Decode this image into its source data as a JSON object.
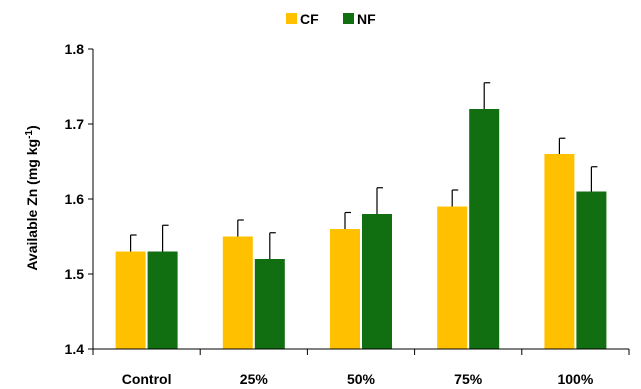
{
  "chart_data": {
    "type": "bar",
    "categories": [
      "Control",
      "25%",
      "50%",
      "75%",
      "100%"
    ],
    "series": [
      {
        "name": "CF",
        "color": "#FFC000",
        "values": [
          1.53,
          1.55,
          1.56,
          1.59,
          1.66
        ],
        "errors": [
          0.022,
          0.022,
          0.022,
          0.022,
          0.021
        ]
      },
      {
        "name": "NF",
        "color": "#116E11",
        "values": [
          1.53,
          1.52,
          1.58,
          1.72,
          1.61
        ],
        "errors": [
          0.035,
          0.035,
          0.035,
          0.035,
          0.033
        ]
      }
    ],
    "ylabel_main": "Available Zn (mg kg",
    "ylabel_sup": "-1",
    "ylabel_close": ")",
    "ylim": [
      1.4,
      1.8
    ],
    "yticks": [
      "1.4",
      "1.5",
      "1.6",
      "1.7",
      "1.8"
    ],
    "legend_position": "top-center",
    "grid": false
  }
}
